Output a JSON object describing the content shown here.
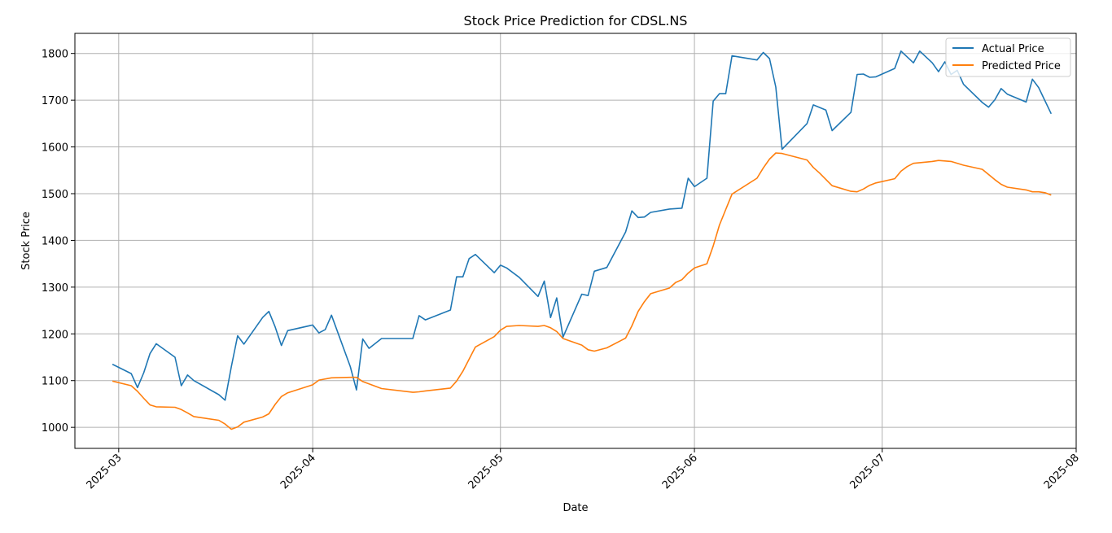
{
  "chart_data": {
    "type": "line",
    "title": "Stock Price Prediction for CDSL.NS",
    "xlabel": "Date",
    "ylabel": "Stock Price",
    "xlim": [
      "2025-02-22",
      "2025-08-01"
    ],
    "ylim": [
      955,
      1843
    ],
    "grid": true,
    "legend_position": "top-right",
    "x_ticks": [
      "2025-03",
      "2025-04",
      "2025-05",
      "2025-06",
      "2025-07",
      "2025-08"
    ],
    "y_ticks": [
      1000,
      1100,
      1200,
      1300,
      1400,
      1500,
      1600,
      1700,
      1800
    ],
    "series": [
      {
        "name": "Actual Price",
        "color": "#1f77b4",
        "points": [
          [
            "2025-02-28",
            1135
          ],
          [
            "2025-03-03",
            1115
          ],
          [
            "2025-03-04",
            1085
          ],
          [
            "2025-03-05",
            1117
          ],
          [
            "2025-03-06",
            1158
          ],
          [
            "2025-03-07",
            1179
          ],
          [
            "2025-03-10",
            1150
          ],
          [
            "2025-03-11",
            1089
          ],
          [
            "2025-03-12",
            1112
          ],
          [
            "2025-03-13",
            1100
          ],
          [
            "2025-03-17",
            1070
          ],
          [
            "2025-03-18",
            1058
          ],
          [
            "2025-03-19",
            1130
          ],
          [
            "2025-03-20",
            1196
          ],
          [
            "2025-03-21",
            1178
          ],
          [
            "2025-03-24",
            1235
          ],
          [
            "2025-03-25",
            1248
          ],
          [
            "2025-03-26",
            1215
          ],
          [
            "2025-03-27",
            1175
          ],
          [
            "2025-03-28",
            1207
          ],
          [
            "2025-04-01",
            1219
          ],
          [
            "2025-04-02",
            1202
          ],
          [
            "2025-04-03",
            1209
          ],
          [
            "2025-04-04",
            1240
          ],
          [
            "2025-04-07",
            1130
          ],
          [
            "2025-04-08",
            1080
          ],
          [
            "2025-04-09",
            1189
          ],
          [
            "2025-04-10",
            1169
          ],
          [
            "2025-04-12",
            1190
          ],
          [
            "2025-04-15",
            1190
          ],
          [
            "2025-04-17",
            1190
          ],
          [
            "2025-04-18",
            1239
          ],
          [
            "2025-04-19",
            1230
          ],
          [
            "2025-04-23",
            1251
          ],
          [
            "2025-04-24",
            1322
          ],
          [
            "2025-04-25",
            1322
          ],
          [
            "2025-04-26",
            1361
          ],
          [
            "2025-04-27",
            1370
          ],
          [
            "2025-04-30",
            1331
          ],
          [
            "2025-05-01",
            1347
          ],
          [
            "2025-05-02",
            1341
          ],
          [
            "2025-05-04",
            1321
          ],
          [
            "2025-05-07",
            1280
          ],
          [
            "2025-05-08",
            1313
          ],
          [
            "2025-05-09",
            1235
          ],
          [
            "2025-05-10",
            1277
          ],
          [
            "2025-05-11",
            1193
          ],
          [
            "2025-05-14",
            1285
          ],
          [
            "2025-05-15",
            1282
          ],
          [
            "2025-05-16",
            1334
          ],
          [
            "2025-05-18",
            1342
          ],
          [
            "2025-05-21",
            1418
          ],
          [
            "2025-05-22",
            1463
          ],
          [
            "2025-05-23",
            1449
          ],
          [
            "2025-05-24",
            1450
          ],
          [
            "2025-05-25",
            1460
          ],
          [
            "2025-05-28",
            1467
          ],
          [
            "2025-05-30",
            1469
          ],
          [
            "2025-05-31",
            1533
          ],
          [
            "2025-06-01",
            1515
          ],
          [
            "2025-06-03",
            1533
          ],
          [
            "2025-06-04",
            1698
          ],
          [
            "2025-06-05",
            1714
          ],
          [
            "2025-06-06",
            1714
          ],
          [
            "2025-06-07",
            1795
          ],
          [
            "2025-06-11",
            1786
          ],
          [
            "2025-06-12",
            1802
          ],
          [
            "2025-06-13",
            1789
          ],
          [
            "2025-06-14",
            1728
          ],
          [
            "2025-06-15",
            1595
          ],
          [
            "2025-06-19",
            1650
          ],
          [
            "2025-06-20",
            1690
          ],
          [
            "2025-06-22",
            1679
          ],
          [
            "2025-06-23",
            1635
          ],
          [
            "2025-06-26",
            1674
          ],
          [
            "2025-06-27",
            1755
          ],
          [
            "2025-06-28",
            1756
          ],
          [
            "2025-06-29",
            1749
          ],
          [
            "2025-06-30",
            1750
          ],
          [
            "2025-07-03",
            1768
          ],
          [
            "2025-07-04",
            1805
          ],
          [
            "2025-07-06",
            1780
          ],
          [
            "2025-07-07",
            1805
          ],
          [
            "2025-07-09",
            1780
          ],
          [
            "2025-07-10",
            1761
          ],
          [
            "2025-07-11",
            1782
          ],
          [
            "2025-07-12",
            1755
          ],
          [
            "2025-07-13",
            1764
          ],
          [
            "2025-07-14",
            1734
          ],
          [
            "2025-07-17",
            1695
          ],
          [
            "2025-07-18",
            1685
          ],
          [
            "2025-07-19",
            1701
          ],
          [
            "2025-07-20",
            1725
          ],
          [
            "2025-07-21",
            1713
          ],
          [
            "2025-07-24",
            1696
          ],
          [
            "2025-07-25",
            1745
          ],
          [
            "2025-07-26",
            1727
          ],
          [
            "2025-07-28",
            1671
          ]
        ]
      },
      {
        "name": "Predicted Price",
        "color": "#ff7f0e",
        "points": [
          [
            "2025-02-28",
            1099
          ],
          [
            "2025-03-03",
            1089
          ],
          [
            "2025-03-04",
            1077
          ],
          [
            "2025-03-05",
            1062
          ],
          [
            "2025-03-06",
            1048
          ],
          [
            "2025-03-07",
            1044
          ],
          [
            "2025-03-10",
            1043
          ],
          [
            "2025-03-11",
            1038
          ],
          [
            "2025-03-12",
            1031
          ],
          [
            "2025-03-13",
            1023
          ],
          [
            "2025-03-17",
            1015
          ],
          [
            "2025-03-18",
            1007
          ],
          [
            "2025-03-19",
            996
          ],
          [
            "2025-03-20",
            1001
          ],
          [
            "2025-03-21",
            1011
          ],
          [
            "2025-03-24",
            1022
          ],
          [
            "2025-03-25",
            1029
          ],
          [
            "2025-03-26",
            1049
          ],
          [
            "2025-03-27",
            1066
          ],
          [
            "2025-03-28",
            1074
          ],
          [
            "2025-04-01",
            1091
          ],
          [
            "2025-04-02",
            1101
          ],
          [
            "2025-04-04",
            1106
          ],
          [
            "2025-04-07",
            1107
          ],
          [
            "2025-04-08",
            1107
          ],
          [
            "2025-04-09",
            1098
          ],
          [
            "2025-04-12",
            1083
          ],
          [
            "2025-04-17",
            1075
          ],
          [
            "2025-04-18",
            1076
          ],
          [
            "2025-04-19",
            1078
          ],
          [
            "2025-04-23",
            1084
          ],
          [
            "2025-04-24",
            1099
          ],
          [
            "2025-04-25",
            1120
          ],
          [
            "2025-04-27",
            1172
          ],
          [
            "2025-04-30",
            1194
          ],
          [
            "2025-05-01",
            1208
          ],
          [
            "2025-05-02",
            1216
          ],
          [
            "2025-05-04",
            1218
          ],
          [
            "2025-05-07",
            1216
          ],
          [
            "2025-05-08",
            1218
          ],
          [
            "2025-05-09",
            1213
          ],
          [
            "2025-05-10",
            1205
          ],
          [
            "2025-05-11",
            1190
          ],
          [
            "2025-05-14",
            1176
          ],
          [
            "2025-05-15",
            1166
          ],
          [
            "2025-05-16",
            1163
          ],
          [
            "2025-05-18",
            1170
          ],
          [
            "2025-05-21",
            1191
          ],
          [
            "2025-05-22",
            1217
          ],
          [
            "2025-05-23",
            1248
          ],
          [
            "2025-05-24",
            1269
          ],
          [
            "2025-05-25",
            1286
          ],
          [
            "2025-05-28",
            1298
          ],
          [
            "2025-05-29",
            1310
          ],
          [
            "2025-05-30",
            1316
          ],
          [
            "2025-05-31",
            1330
          ],
          [
            "2025-06-01",
            1341
          ],
          [
            "2025-06-03",
            1350
          ],
          [
            "2025-06-04",
            1388
          ],
          [
            "2025-06-05",
            1433
          ],
          [
            "2025-06-06",
            1466
          ],
          [
            "2025-06-07",
            1499
          ],
          [
            "2025-06-11",
            1533
          ],
          [
            "2025-06-12",
            1555
          ],
          [
            "2025-06-13",
            1574
          ],
          [
            "2025-06-14",
            1587
          ],
          [
            "2025-06-15",
            1586
          ],
          [
            "2025-06-19",
            1572
          ],
          [
            "2025-06-20",
            1556
          ],
          [
            "2025-06-21",
            1544
          ],
          [
            "2025-06-23",
            1517
          ],
          [
            "2025-06-26",
            1505
          ],
          [
            "2025-06-27",
            1504
          ],
          [
            "2025-06-28",
            1510
          ],
          [
            "2025-06-29",
            1518
          ],
          [
            "2025-06-30",
            1523
          ],
          [
            "2025-07-03",
            1532
          ],
          [
            "2025-07-04",
            1548
          ],
          [
            "2025-07-05",
            1558
          ],
          [
            "2025-07-06",
            1565
          ],
          [
            "2025-07-09",
            1569
          ],
          [
            "2025-07-10",
            1571
          ],
          [
            "2025-07-12",
            1569
          ],
          [
            "2025-07-14",
            1561
          ],
          [
            "2025-07-17",
            1552
          ],
          [
            "2025-07-19",
            1530
          ],
          [
            "2025-07-20",
            1520
          ],
          [
            "2025-07-21",
            1514
          ],
          [
            "2025-07-24",
            1508
          ],
          [
            "2025-07-25",
            1504
          ],
          [
            "2025-07-26",
            1504
          ],
          [
            "2025-07-27",
            1502
          ],
          [
            "2025-07-28",
            1497
          ]
        ]
      }
    ]
  }
}
